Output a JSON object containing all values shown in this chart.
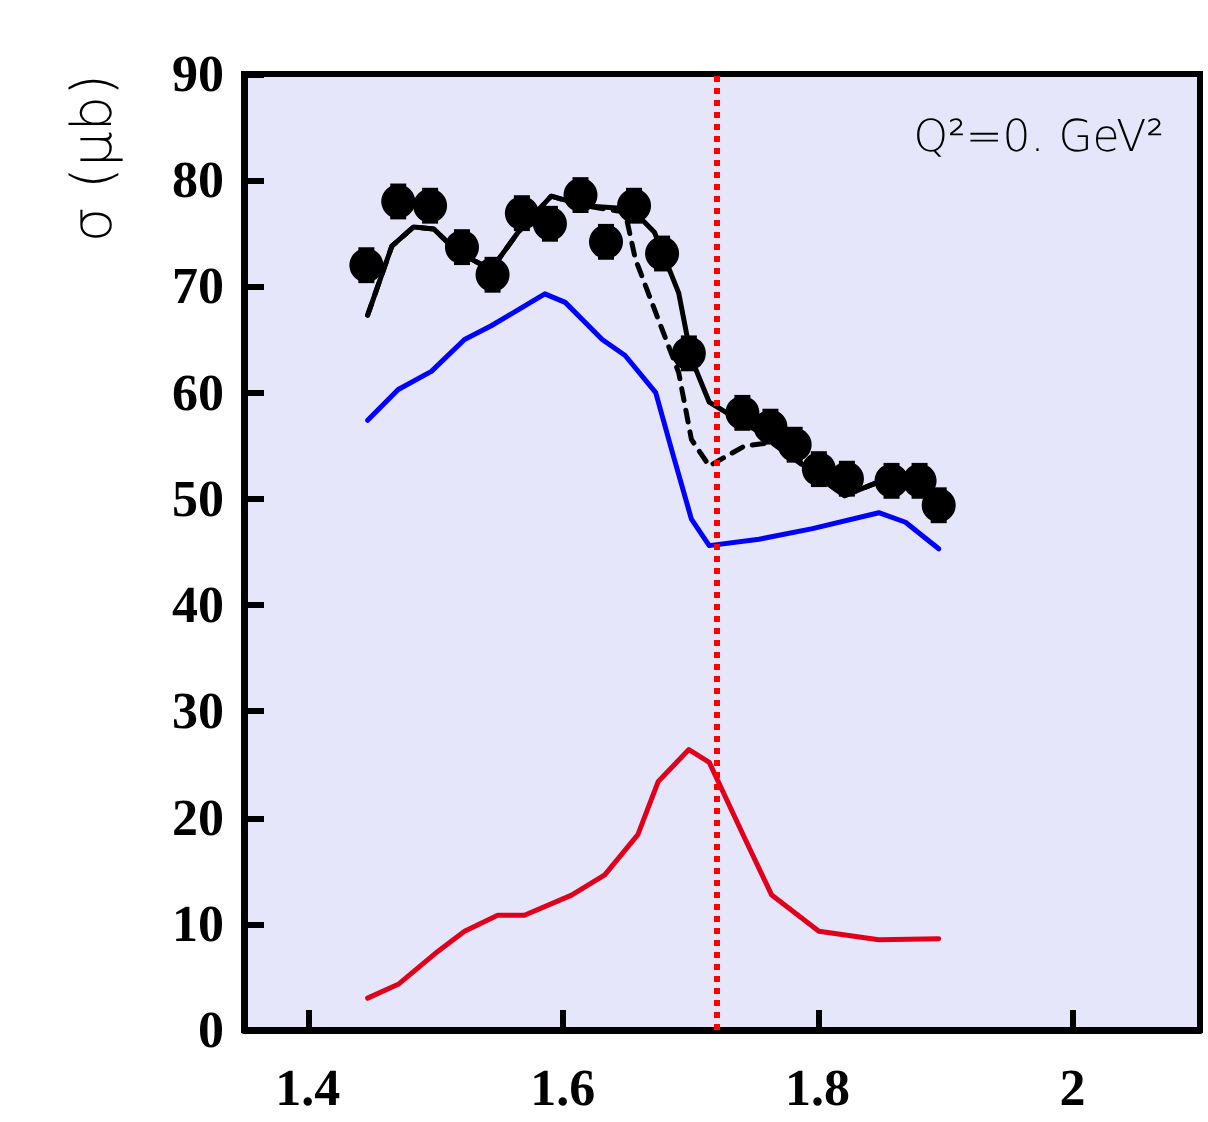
{
  "chart_data": {
    "type": "line",
    "ylabel": "σ (μb)",
    "annotations": [
      "Q²=0. GeV²"
    ],
    "xlim": [
      1.35,
      2.1
    ],
    "xticks": [
      1.4,
      1.6,
      1.8,
      2
    ],
    "ylim": [
      0,
      90
    ],
    "yticks": [
      0,
      10,
      20,
      30,
      40,
      50,
      60,
      70,
      80,
      90
    ],
    "grid": false,
    "ref_lines": [
      {
        "axis": "x",
        "value": 1.72,
        "color": "#ff0000",
        "line_style": "dotted"
      }
    ],
    "series": [
      {
        "type": "scatter",
        "color": "#000000",
        "marker": "circle",
        "x": [
          1.446,
          1.471,
          1.496,
          1.521,
          1.545,
          1.568,
          1.59,
          1.614,
          1.634,
          1.656,
          1.678,
          1.699,
          1.741,
          1.763,
          1.782,
          1.801,
          1.823,
          1.858,
          1.88,
          1.895
        ],
        "values": [
          72.0,
          78.0,
          77.6,
          73.7,
          71.1,
          76.9,
          75.9,
          78.6,
          74.2,
          77.6,
          73.1,
          63.7,
          58.1,
          56.8,
          55.1,
          52.8,
          51.9,
          51.7,
          51.7,
          49.4
        ],
        "errors": [
          1.5,
          1.5,
          1.5,
          1.5,
          1.5,
          1.5,
          1.5,
          1.5,
          1.5,
          1.5,
          1.5,
          1.5,
          1.5,
          1.5,
          1.5,
          1.5,
          1.5,
          1.5,
          1.5,
          1.5
        ]
      },
      {
        "color": "#000000",
        "line_style": "solid",
        "x": [
          1.447,
          1.466,
          1.483,
          1.499,
          1.518,
          1.544,
          1.565,
          1.591,
          1.617,
          1.654,
          1.672,
          1.691,
          1.701,
          1.715,
          1.733,
          1.764,
          1.796,
          1.821,
          1.848,
          1.88
        ],
        "values": [
          67.3,
          73.8,
          75.6,
          75.4,
          73.2,
          71.6,
          75.1,
          78.5,
          77.6,
          77.3,
          75.1,
          69.4,
          63.2,
          59.1,
          57.8,
          55.6,
          52.5,
          50.3,
          51.6,
          51.3
        ]
      },
      {
        "color": "#000000",
        "line_style": "dashed",
        "x": [
          1.447,
          1.466,
          1.483,
          1.499,
          1.518,
          1.544,
          1.565,
          1.591,
          1.617,
          1.649,
          1.657,
          1.675,
          1.691,
          1.701,
          1.715,
          1.743,
          1.764,
          1.796,
          1.821,
          1.848,
          1.88
        ],
        "values": [
          67.3,
          73.8,
          75.6,
          75.4,
          73.2,
          71.6,
          75.1,
          78.5,
          77.6,
          77.0,
          72.6,
          66.9,
          61.9,
          55.6,
          53.1,
          55.0,
          55.3,
          52.5,
          50.3,
          51.6,
          51.3
        ]
      },
      {
        "color": "#0000ff",
        "line_style": "solid",
        "x": [
          1.447,
          1.471,
          1.497,
          1.523,
          1.544,
          1.586,
          1.602,
          1.631,
          1.649,
          1.673,
          1.686,
          1.701,
          1.715,
          1.754,
          1.796,
          1.848,
          1.869,
          1.895
        ],
        "values": [
          57.4,
          60.3,
          62.0,
          65.0,
          66.3,
          69.3,
          68.5,
          65.0,
          63.5,
          60.0,
          54.4,
          48.1,
          45.6,
          46.2,
          47.2,
          48.7,
          47.8,
          45.3
        ]
      },
      {
        "color": "#e0001b",
        "line_style": "solid",
        "x": [
          1.447,
          1.471,
          1.502,
          1.523,
          1.549,
          1.57,
          1.607,
          1.633,
          1.659,
          1.675,
          1.699,
          1.715,
          1.743,
          1.764,
          1.801,
          1.848,
          1.895
        ],
        "values": [
          3.0,
          4.3,
          7.4,
          9.3,
          10.8,
          10.8,
          12.7,
          14.6,
          18.4,
          23.4,
          26.4,
          25.2,
          18.0,
          12.7,
          9.3,
          8.5,
          8.6
        ]
      }
    ]
  }
}
